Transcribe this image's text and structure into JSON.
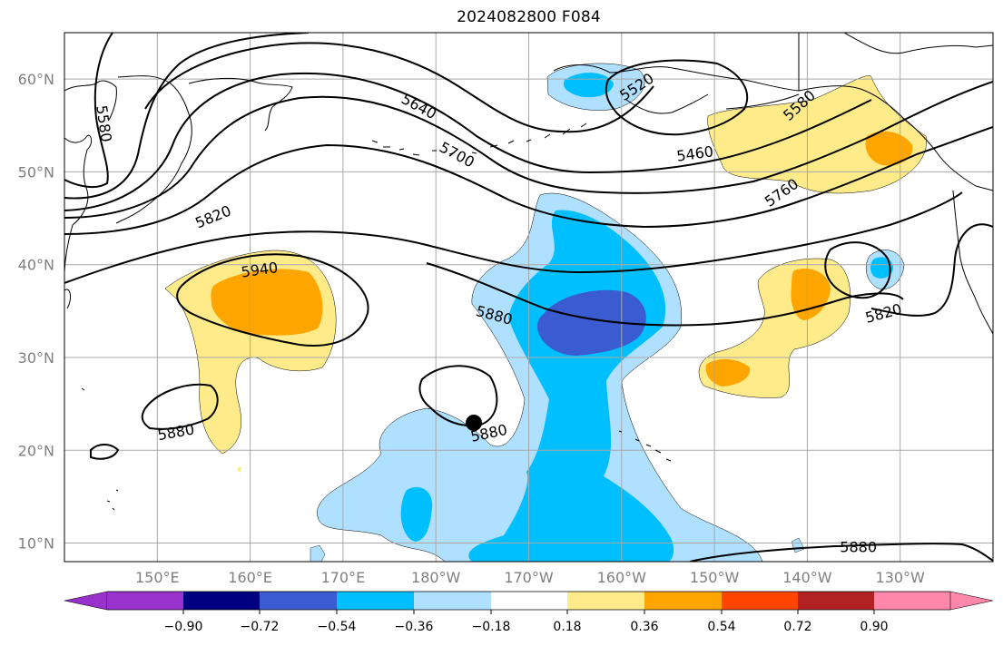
{
  "title": "2024082800 F084",
  "map": {
    "projection": "plate-carree",
    "lon_range": [
      140,
      240
    ],
    "lat_range": [
      8,
      65
    ],
    "grid": true
  },
  "latitude_labels": [
    "60°N",
    "50°N",
    "40°N",
    "30°N",
    "20°N",
    "10°N"
  ],
  "longitude_labels": [
    "150°E",
    "160°E",
    "170°E",
    "180°W",
    "170°W",
    "160°W",
    "150°W",
    "140°W",
    "130°W"
  ],
  "contour_labels": [
    {
      "text": "5580",
      "lon": 144.3,
      "lat": 55.2,
      "rot": 82
    },
    {
      "text": "5640",
      "lon": 178.2,
      "lat": 57.1,
      "rot": 28
    },
    {
      "text": "5520",
      "lon": 201.6,
      "lat": 59.2,
      "rot": -33
    },
    {
      "text": "5460",
      "lon": 207.9,
      "lat": 52.0,
      "rot": -8
    },
    {
      "text": "5580",
      "lon": 219.1,
      "lat": 57.2,
      "rot": -42
    },
    {
      "text": "5700",
      "lon": 182.3,
      "lat": 51.9,
      "rot": 28
    },
    {
      "text": "5760",
      "lon": 217.2,
      "lat": 47.8,
      "rot": -35
    },
    {
      "text": "5820",
      "lon": 156.0,
      "lat": 45.2,
      "rot": -22
    },
    {
      "text": "5940",
      "lon": 161.0,
      "lat": 39.5,
      "rot": -8
    },
    {
      "text": "5880",
      "lon": 186.3,
      "lat": 34.6,
      "rot": 15
    },
    {
      "text": "5820",
      "lon": 228.2,
      "lat": 34.8,
      "rot": -15
    },
    {
      "text": "5880",
      "lon": 152.0,
      "lat": 22.0,
      "rot": -10
    },
    {
      "text": "5880",
      "lon": 185.7,
      "lat": 21.9,
      "rot": -12
    },
    {
      "text": "5880",
      "lon": 225.5,
      "lat": 9.6,
      "rot": 0
    }
  ],
  "colorbar": {
    "ticks": [
      "−0.90",
      "−0.72",
      "−0.54",
      "−0.36",
      "−0.18",
      "0.18",
      "0.36",
      "0.54",
      "0.72",
      "0.90"
    ],
    "colors": [
      "#9932cc",
      "#000080",
      "#3b5bd1",
      "#00bfff",
      "#b0e0ff",
      "#ffffff",
      "#ffeb8a",
      "#ffa500",
      "#ff4500",
      "#b22222",
      "#ff88aa",
      "#ff88aa"
    ],
    "under_color": "#9932cc",
    "over_color": "#ff88aa"
  },
  "legend_colors": {
    "contour": "#000000",
    "grid": "#a8a8a8",
    "coast": "#000000"
  }
}
